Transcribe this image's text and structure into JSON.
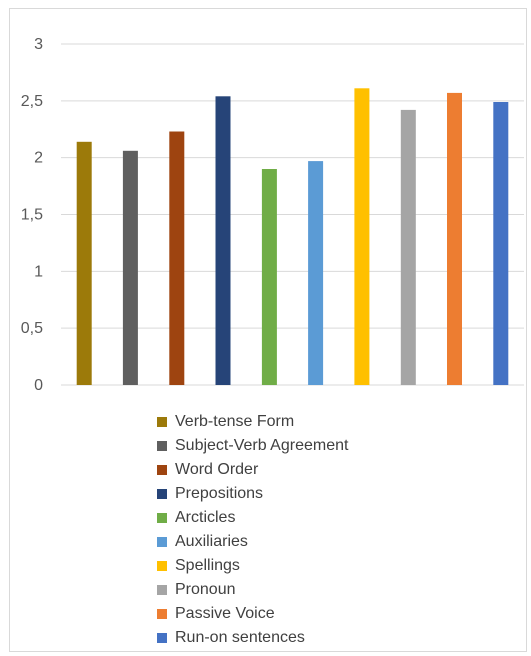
{
  "chart_data": {
    "type": "bar",
    "title": "",
    "xlabel": "",
    "ylabel": "",
    "ylim": [
      0,
      3
    ],
    "yticks": [
      "0",
      "0,5",
      "1",
      "1,5",
      "2",
      "2,5",
      "3"
    ],
    "grid": true,
    "legend_position": "bottom",
    "series": [
      {
        "name": "Verb-tense Form",
        "value": 2.14,
        "color": "#9C7A0A"
      },
      {
        "name": "Subject-Verb Agreement",
        "value": 2.06,
        "color": "#5F5F5F"
      },
      {
        "name": "Word Order",
        "value": 2.23,
        "color": "#9E4410"
      },
      {
        "name": "Prepositions",
        "value": 2.54,
        "color": "#264478"
      },
      {
        "name": "Arcticles",
        "value": 1.9,
        "color": "#70AD47"
      },
      {
        "name": "Auxiliaries",
        "value": 1.97,
        "color": "#5B9BD5"
      },
      {
        "name": "Spellings",
        "value": 2.61,
        "color": "#FFC000"
      },
      {
        "name": "Pronoun",
        "value": 2.42,
        "color": "#A5A5A5"
      },
      {
        "name": "Passive Voice",
        "value": 2.57,
        "color": "#ED7D31"
      },
      {
        "name": "Run-on sentences",
        "value": 2.49,
        "color": "#4472C4"
      }
    ]
  }
}
